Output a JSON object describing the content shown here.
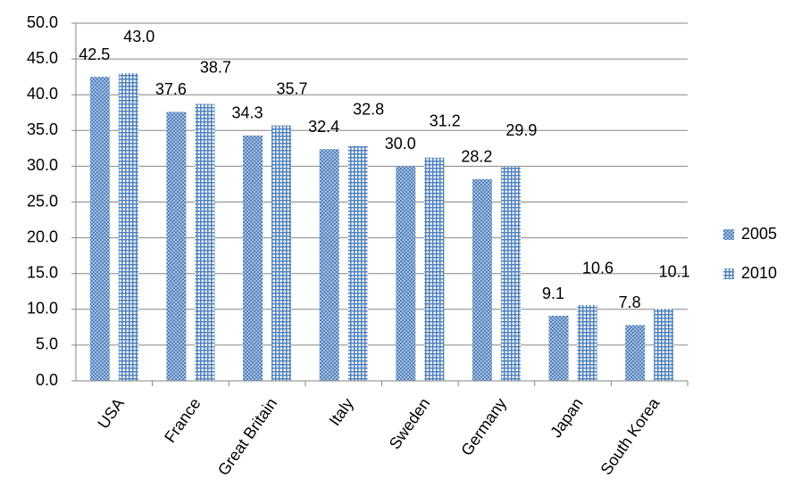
{
  "chart_data": {
    "type": "bar",
    "categories": [
      "USA",
      "France",
      "Great Britain",
      "Italy",
      "Sweden",
      "Germany",
      "Japan",
      "South Korea"
    ],
    "series": [
      {
        "name": "2005",
        "color": "#4f81bd",
        "values": [
          42.5,
          37.6,
          34.3,
          32.4,
          30.0,
          28.2,
          9.1,
          7.8
        ],
        "value_labels": [
          "42.5",
          "37.6",
          "34.3",
          "32.4",
          "30.0",
          "28.2",
          "9.1",
          "7.8"
        ]
      },
      {
        "name": "2010",
        "color": "#4f81bd",
        "values": [
          43.0,
          38.7,
          35.7,
          32.8,
          31.2,
          29.9,
          10.6,
          10.1
        ],
        "value_labels": [
          "43.0",
          "38.7",
          "35.7",
          "32.8",
          "31.2",
          "29.9",
          "10.6",
          "10.1"
        ]
      }
    ],
    "ylim": [
      0,
      50
    ],
    "yticks": [
      {
        "value": 0,
        "label": "0.0"
      },
      {
        "value": 5,
        "label": "5.0"
      },
      {
        "value": 10,
        "label": "10.0"
      },
      {
        "value": 15,
        "label": "15.0"
      },
      {
        "value": 20,
        "label": "20.0"
      },
      {
        "value": 25,
        "label": "25.0"
      },
      {
        "value": 30,
        "label": "30.0"
      },
      {
        "value": 35,
        "label": "35.0"
      },
      {
        "value": 40,
        "label": "40.0"
      },
      {
        "value": 45,
        "label": "45.0"
      },
      {
        "value": 50,
        "label": "50.0"
      }
    ],
    "grid": true,
    "legend": "right"
  }
}
